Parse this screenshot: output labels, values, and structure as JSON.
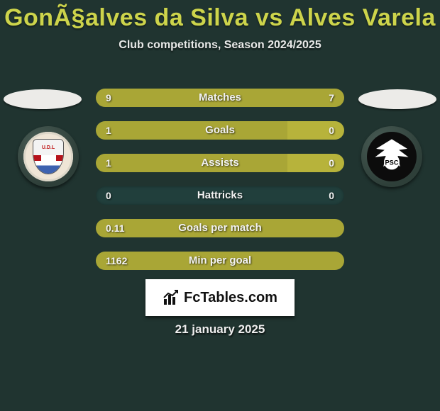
{
  "header": {
    "title": "GonÃ§alves da Silva vs Alves Varela",
    "subtitle": "Club competitions, Season 2024/2025"
  },
  "colors": {
    "accent": "#a9a636",
    "accent_bright": "#b7b33b",
    "row_bg": "#213f3c",
    "page_bg": "#203430",
    "title_color": "#cdd44b"
  },
  "teams": {
    "left": {
      "shield_text": "U.D.L"
    },
    "right": {
      "shield_text": "PSC"
    }
  },
  "stats": [
    {
      "label": "Matches",
      "left_val": "9",
      "right_val": "7",
      "left_pct": 56,
      "right_pct": 44,
      "left_color": "#a9a636",
      "right_color": "#a9a636"
    },
    {
      "label": "Goals",
      "left_val": "1",
      "right_val": "0",
      "left_pct": 77,
      "right_pct": 23,
      "left_color": "#a9a636",
      "right_color": "#b7b33b"
    },
    {
      "label": "Assists",
      "left_val": "1",
      "right_val": "0",
      "left_pct": 77,
      "right_pct": 23,
      "left_color": "#a9a636",
      "right_color": "#b7b33b"
    },
    {
      "label": "Hattricks",
      "left_val": "0",
      "right_val": "0",
      "left_pct": 0,
      "right_pct": 0,
      "left_color": "#a9a636",
      "right_color": "#a9a636"
    },
    {
      "label": "Goals per match",
      "left_val": "0.11",
      "right_val": "",
      "left_pct": 100,
      "right_pct": 0,
      "left_color": "#a9a636",
      "right_color": "#a9a636"
    },
    {
      "label": "Min per goal",
      "left_val": "1162",
      "right_val": "",
      "left_pct": 100,
      "right_pct": 0,
      "left_color": "#a9a636",
      "right_color": "#a9a636"
    }
  ],
  "footer": {
    "brand": "FcTables.com",
    "date": "21 january 2025"
  }
}
